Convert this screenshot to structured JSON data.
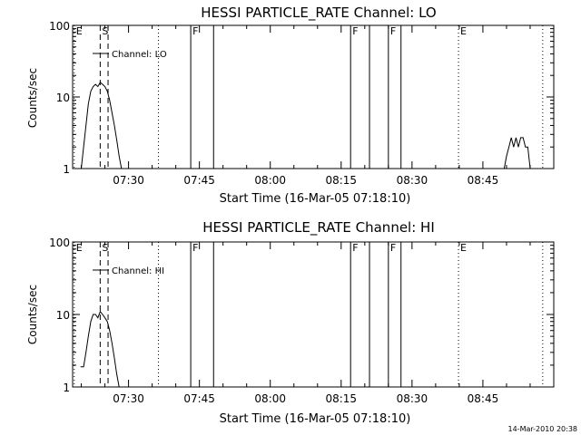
{
  "panels": [
    {
      "title": "HESSI PARTICLE_RATE Channel: LO",
      "ylabel": "Counts/sec",
      "xlabel": "Start Time (16-Mar-05 07:18:10)",
      "legend": "Channel: LO",
      "chart_ref": 0
    },
    {
      "title": "HESSI PARTICLE_RATE Channel: HI",
      "ylabel": "Counts/sec",
      "xlabel": "Start Time (16-Mar-05 07:18:10)",
      "legend": "Channel: HI",
      "chart_ref": 1
    }
  ],
  "footer": {
    "timestamp": "14-Mar-2010 20:38"
  },
  "chart_data": [
    {
      "type": "line",
      "title": "HESSI PARTICLE_RATE Channel: LO",
      "xlabel": "Start Time (16-Mar-05 07:18:10)",
      "ylabel": "Counts/sec",
      "y_scale": "log",
      "ylim": [
        1,
        100
      ],
      "y_ticks": [
        1,
        10,
        100
      ],
      "y_tick_labels": [
        "1",
        "10",
        "100"
      ],
      "xlim": [
        "07:18:10",
        "09:00:00"
      ],
      "x_ticks": [
        "07:30",
        "07:45",
        "08:00",
        "08:15",
        "08:30",
        "08:45"
      ],
      "legend": "top-left",
      "grid": false,
      "series": [
        {
          "name": "Channel: LO",
          "color": "#000000",
          "x": [
            "07:20:00",
            "07:20:30",
            "07:21:00",
            "07:21:30",
            "07:22:00",
            "07:22:30",
            "07:23:00",
            "07:23:30",
            "07:24:00",
            "07:24:30",
            "07:25:00",
            "07:25:30",
            "07:26:00",
            "07:26:30",
            "07:27:00",
            "07:27:30",
            "07:28:00",
            "07:28:30"
          ],
          "y": [
            1,
            2,
            4,
            8,
            12,
            14,
            15,
            14,
            16,
            15,
            14,
            12,
            9,
            6,
            4,
            2.5,
            1.5,
            1
          ]
        },
        {
          "name": "Channel: LO",
          "color": "#000000",
          "x": [
            "08:49:30",
            "08:50:00",
            "08:50:30",
            "08:51:00",
            "08:51:30",
            "08:52:00",
            "08:52:30",
            "08:53:00",
            "08:53:30",
            "08:54:00",
            "08:54:30",
            "08:55:00"
          ],
          "y": [
            1,
            1.5,
            2,
            2.7,
            2,
            2.7,
            2,
            2.7,
            2.7,
            2,
            2,
            1
          ]
        }
      ],
      "markers": [
        {
          "label": "E",
          "time": "07:18:30",
          "style": "dotted"
        },
        {
          "label": "S",
          "time": "07:24:00",
          "style": "dashed"
        },
        {
          "label": "",
          "time": "07:25:40",
          "style": "dashed"
        },
        {
          "label": "",
          "time": "07:36:20",
          "style": "dotted"
        },
        {
          "label": "F",
          "time": "07:43:10",
          "style": "solid"
        },
        {
          "label": "",
          "time": "07:48:00",
          "style": "solid"
        },
        {
          "label": "F",
          "time": "08:17:00",
          "style": "solid"
        },
        {
          "label": "",
          "time": "08:21:00",
          "style": "solid"
        },
        {
          "label": "F",
          "time": "08:25:00",
          "style": "solid"
        },
        {
          "label": "",
          "time": "08:27:40",
          "style": "solid"
        },
        {
          "label": "E",
          "time": "08:39:50",
          "style": "dotted"
        },
        {
          "label": "",
          "time": "08:57:40",
          "style": "dotted"
        }
      ]
    },
    {
      "type": "line",
      "title": "HESSI PARTICLE_RATE Channel: HI",
      "xlabel": "Start Time (16-Mar-05 07:18:10)",
      "ylabel": "Counts/sec",
      "y_scale": "log",
      "ylim": [
        1,
        100
      ],
      "y_ticks": [
        1,
        10,
        100
      ],
      "y_tick_labels": [
        "1",
        "10",
        "100"
      ],
      "xlim": [
        "07:18:10",
        "09:00:00"
      ],
      "x_ticks": [
        "07:30",
        "07:45",
        "08:00",
        "08:15",
        "08:30",
        "08:45"
      ],
      "legend": "top-left",
      "grid": false,
      "series": [
        {
          "name": "Channel: HI",
          "color": "#000000",
          "x": [
            "07:19:50",
            "07:20:30",
            "07:21:00",
            "07:21:30",
            "07:22:00",
            "07:22:30",
            "07:23:00",
            "07:23:30",
            "07:24:00",
            "07:24:30",
            "07:25:00",
            "07:25:30",
            "07:26:00",
            "07:26:30",
            "07:27:00",
            "07:27:30",
            "07:28:00"
          ],
          "y": [
            1.9,
            1.9,
            3,
            5,
            8,
            10,
            10,
            9,
            11,
            10,
            9,
            8,
            6,
            4,
            2.5,
            1.5,
            1
          ]
        }
      ],
      "markers": [
        {
          "label": "E",
          "time": "07:18:30",
          "style": "dotted"
        },
        {
          "label": "S",
          "time": "07:24:00",
          "style": "dashed"
        },
        {
          "label": "",
          "time": "07:25:40",
          "style": "dashed"
        },
        {
          "label": "",
          "time": "07:36:20",
          "style": "dotted"
        },
        {
          "label": "F",
          "time": "07:43:10",
          "style": "solid"
        },
        {
          "label": "",
          "time": "07:48:00",
          "style": "solid"
        },
        {
          "label": "F",
          "time": "08:17:00",
          "style": "solid"
        },
        {
          "label": "",
          "time": "08:21:00",
          "style": "solid"
        },
        {
          "label": "F",
          "time": "08:25:00",
          "style": "solid"
        },
        {
          "label": "",
          "time": "08:27:40",
          "style": "solid"
        },
        {
          "label": "E",
          "time": "08:39:50",
          "style": "dotted"
        },
        {
          "label": "",
          "time": "08:57:40",
          "style": "dotted"
        }
      ]
    }
  ]
}
